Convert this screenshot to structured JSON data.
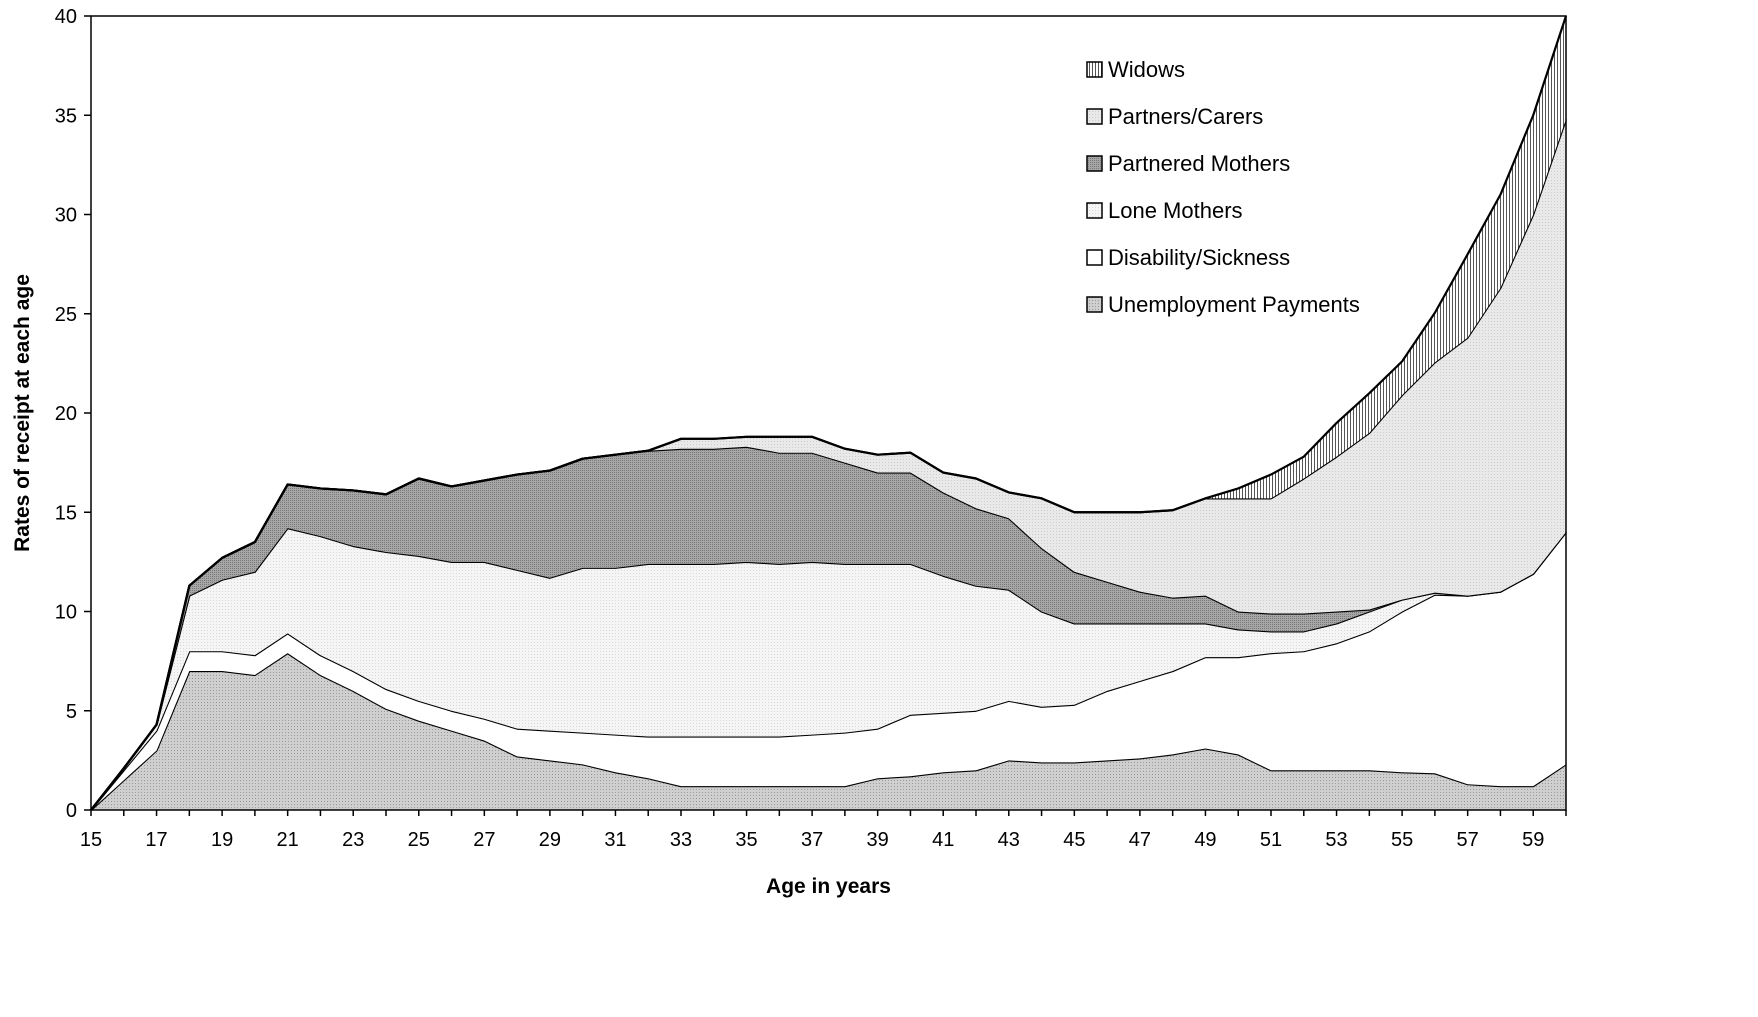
{
  "chart_data": {
    "type": "area",
    "stacked": true,
    "title": "",
    "xlabel": "Age in years",
    "ylabel": "Rates of receipt at each age",
    "xlim": [
      15,
      60
    ],
    "ylim": [
      0,
      40
    ],
    "x_ticks": [
      15,
      17,
      19,
      21,
      23,
      25,
      27,
      29,
      31,
      33,
      35,
      37,
      39,
      41,
      43,
      45,
      47,
      49,
      51,
      53,
      55,
      57,
      59
    ],
    "y_ticks": [
      0,
      5,
      10,
      15,
      20,
      25,
      30,
      35,
      40
    ],
    "x_tick_labels": [
      "15",
      "17",
      "19",
      "21",
      "23",
      "25",
      "27",
      "29",
      "31",
      "33",
      "35",
      "37",
      "39",
      "41",
      "43",
      "45",
      "47",
      "49",
      "51",
      "53",
      "55",
      "57",
      "59"
    ],
    "y_tick_labels": [
      "0",
      "5",
      "10",
      "15",
      "20",
      "25",
      "30",
      "35",
      "40"
    ],
    "grid": false,
    "legend_position": "top-right",
    "legend_order": [
      "Widows",
      "Partners/Carers",
      "Partnered Mothers",
      "Lone Mothers",
      "Disability/Sickness",
      "Unemployment Payments"
    ],
    "x": [
      15,
      16,
      17,
      18,
      19,
      20,
      21,
      22,
      23,
      24,
      25,
      26,
      27,
      28,
      29,
      30,
      31,
      32,
      33,
      34,
      35,
      36,
      37,
      38,
      39,
      40,
      41,
      42,
      43,
      44,
      45,
      46,
      47,
      48,
      49,
      50,
      51,
      52,
      53,
      54,
      55,
      56,
      57,
      58,
      59,
      60
    ],
    "series": [
      {
        "name": "Unemployment Payments",
        "color": "#c4c4c4",
        "values": [
          0,
          1.5,
          3.0,
          7.0,
          7.0,
          6.8,
          7.9,
          6.8,
          6.0,
          5.1,
          4.5,
          4.0,
          3.5,
          2.7,
          2.5,
          2.3,
          1.9,
          1.6,
          1.2,
          1.2,
          1.2,
          1.2,
          1.2,
          1.2,
          1.6,
          1.7,
          1.9,
          2.0,
          2.5,
          2.4,
          2.4,
          2.5,
          2.6,
          2.8,
          3.1,
          2.8,
          2.0,
          2.0,
          2.0,
          2.0,
          1.9,
          1.85,
          1.3,
          1.2,
          1.2,
          2.3
        ]
      },
      {
        "name": "Disability/Sickness",
        "color": "#ffffff",
        "values": [
          0,
          0.5,
          1.0,
          1.0,
          1.0,
          1.0,
          1.0,
          1.0,
          1.0,
          1.0,
          1.0,
          1.0,
          1.1,
          1.4,
          1.5,
          1.6,
          1.9,
          2.1,
          2.5,
          2.5,
          2.5,
          2.5,
          2.6,
          2.7,
          2.5,
          3.1,
          3.0,
          3.0,
          3.0,
          2.8,
          2.9,
          3.5,
          3.9,
          4.2,
          4.6,
          4.9,
          5.9,
          6.0,
          6.4,
          7.0,
          8.1,
          9.0,
          9.5,
          9.8,
          10.7,
          11.7
        ]
      },
      {
        "name": "Lone Mothers",
        "color": "#efefef",
        "values": [
          0,
          0.1,
          0.3,
          2.8,
          3.6,
          4.2,
          5.3,
          6.0,
          6.3,
          6.9,
          7.3,
          7.5,
          7.9,
          8.0,
          7.7,
          8.3,
          8.4,
          8.7,
          8.7,
          8.7,
          8.8,
          8.7,
          8.7,
          8.5,
          8.3,
          7.6,
          6.9,
          6.3,
          5.6,
          4.8,
          4.1,
          3.4,
          2.9,
          2.4,
          1.7,
          1.4,
          1.1,
          1.0,
          1.0,
          1.0,
          0.6,
          0.1,
          0,
          0,
          0,
          0
        ]
      },
      {
        "name": "Partnered Mothers",
        "color": "#9a9a9a",
        "values": [
          0,
          0,
          0,
          0.5,
          1.1,
          1.5,
          2.2,
          2.4,
          2.8,
          2.9,
          3.9,
          3.8,
          4.1,
          4.8,
          5.4,
          5.5,
          5.7,
          5.7,
          5.8,
          5.8,
          5.8,
          5.6,
          5.5,
          5.1,
          4.6,
          4.6,
          4.2,
          3.9,
          3.6,
          3.2,
          2.6,
          2.1,
          1.6,
          1.3,
          1.4,
          0.9,
          0.9,
          0.9,
          0.6,
          0.1,
          0,
          0,
          0,
          0,
          0,
          0
        ]
      },
      {
        "name": "Partners/Carers",
        "color": "#e4e4e4",
        "values": [
          0,
          0,
          0,
          0,
          0,
          0,
          0,
          0,
          0,
          0,
          0,
          0,
          0,
          0,
          0,
          0,
          0,
          0,
          0.5,
          0.5,
          0.5,
          0.8,
          0.8,
          0.7,
          0.9,
          1.0,
          1.0,
          1.5,
          1.3,
          2.5,
          3.0,
          3.5,
          4.0,
          4.4,
          4.9,
          5.7,
          5.8,
          6.8,
          7.8,
          8.9,
          10.3,
          11.6,
          13.0,
          15.3,
          18.1,
          20.8
        ]
      },
      {
        "name": "Widows",
        "color": "#d0d0d0",
        "values": [
          0,
          0,
          0,
          0,
          0,
          0,
          0,
          0,
          0,
          0,
          0,
          0,
          0,
          0,
          0,
          0,
          0,
          0,
          0,
          0,
          0,
          0,
          0,
          0,
          0,
          0,
          0,
          0,
          0,
          0,
          0,
          0,
          0,
          0,
          0,
          0.5,
          1.2,
          1.1,
          1.7,
          2.0,
          1.7,
          2.5,
          4.2,
          4.7,
          5.0,
          5.2
        ]
      }
    ]
  }
}
